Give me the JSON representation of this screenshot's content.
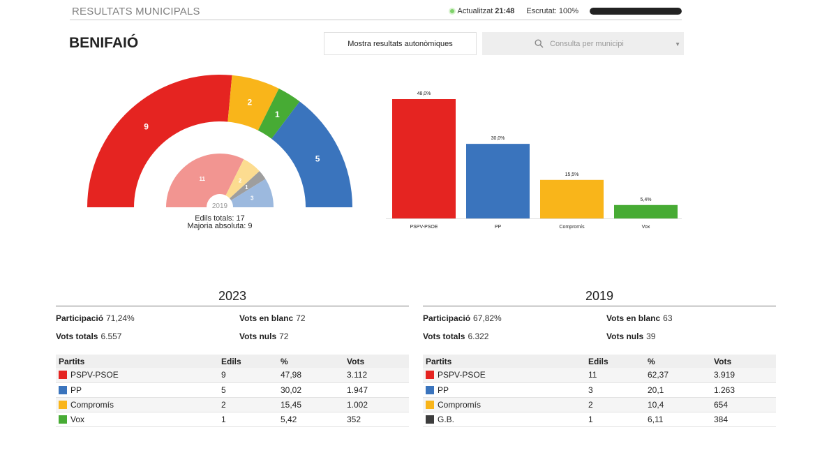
{
  "header": {
    "title": "RESULTATS MUNICIPALS",
    "updated_label": "Actualitzat",
    "updated_time": "21:48",
    "scrutiny": "Escrutat: 100%",
    "scrutiny_fraction": 1.0
  },
  "municipality": "BENIFAIÓ",
  "buttons": {
    "autonomic": "Mostra resultats autonòmiques",
    "search_placeholder": "Consulta per municipi"
  },
  "icons": {
    "search": "search-icon",
    "dropdown": "caret-down-icon",
    "status": "live-dot-icon"
  },
  "colors": {
    "PSPV-PSOE": "#e52421",
    "PP": "#3a74bd",
    "Compromís": "#f9b51a",
    "Vox": "#47ab34",
    "G.B.": "#3d3d3d"
  },
  "seats_caption": {
    "year": "2019",
    "total": "Edils totals: 17",
    "majority": "Majoria absoluta: 9"
  },
  "chart_data": [
    {
      "type": "pie",
      "variant": "semicircle-seats",
      "labels": [
        "PSPV-PSOE",
        "Compromís",
        "Vox",
        "PP"
      ],
      "values": [
        9,
        2,
        1,
        5
      ],
      "colors": [
        "#e52421",
        "#f9b51a",
        "#47ab34",
        "#3a74bd"
      ]
    },
    {
      "type": "pie",
      "variant": "semicircle-seats-2019",
      "labels": [
        "PSPV-PSOE",
        "Compromís",
        "G.B.",
        "PP"
      ],
      "values": [
        11,
        2,
        1,
        3
      ],
      "colors": [
        "#f29591",
        "#fcdc90",
        "#9e9e9e",
        "#9cb9de"
      ]
    },
    {
      "type": "bar",
      "categories": [
        "PSPV-PSOE",
        "PP",
        "Compromís",
        "Vox"
      ],
      "values": [
        48.0,
        30.0,
        15.5,
        5.4
      ],
      "value_labels": [
        "48,0%",
        "30,0%",
        "15,5%",
        "5,4%"
      ],
      "colors": [
        "#e52421",
        "#3a74bd",
        "#f9b51a",
        "#47ab34"
      ],
      "ylim": [
        0,
        48
      ]
    }
  ],
  "results": [
    {
      "year": "2023",
      "participation_label": "Participació",
      "participation": "71,24%",
      "total_label": "Vots totals",
      "total": "6.557",
      "blank_label": "Vots en blanc",
      "blank": "72",
      "null_label": "Vots nuls",
      "null": "72",
      "headers": [
        "Partits",
        "Edils",
        "%",
        "Vots"
      ],
      "rows": [
        {
          "party": "PSPV-PSOE",
          "seats": "9",
          "pct": "47,98",
          "votes": "3.112",
          "color": "#e52421"
        },
        {
          "party": "PP",
          "seats": "5",
          "pct": "30,02",
          "votes": "1.947",
          "color": "#3a74bd"
        },
        {
          "party": "Compromís",
          "seats": "2",
          "pct": "15,45",
          "votes": "1.002",
          "color": "#f9b51a"
        },
        {
          "party": "Vox",
          "seats": "1",
          "pct": "5,42",
          "votes": "352",
          "color": "#47ab34"
        }
      ]
    },
    {
      "year": "2019",
      "participation_label": "Participació",
      "participation": "67,82%",
      "total_label": "Vots totals",
      "total": "6.322",
      "blank_label": "Vots en blanc",
      "blank": "63",
      "null_label": "Vots nuls",
      "null": "39",
      "headers": [
        "Partits",
        "Edils",
        "%",
        "Vots"
      ],
      "rows": [
        {
          "party": "PSPV-PSOE",
          "seats": "11",
          "pct": "62,37",
          "votes": "3.919",
          "color": "#e52421"
        },
        {
          "party": "PP",
          "seats": "3",
          "pct": "20,1",
          "votes": "1.263",
          "color": "#3a74bd"
        },
        {
          "party": "Compromís",
          "seats": "2",
          "pct": "10,4",
          "votes": "654",
          "color": "#f9b51a"
        },
        {
          "party": "G.B.",
          "seats": "1",
          "pct": "6,11",
          "votes": "384",
          "color": "#3d3d3d"
        }
      ]
    }
  ]
}
